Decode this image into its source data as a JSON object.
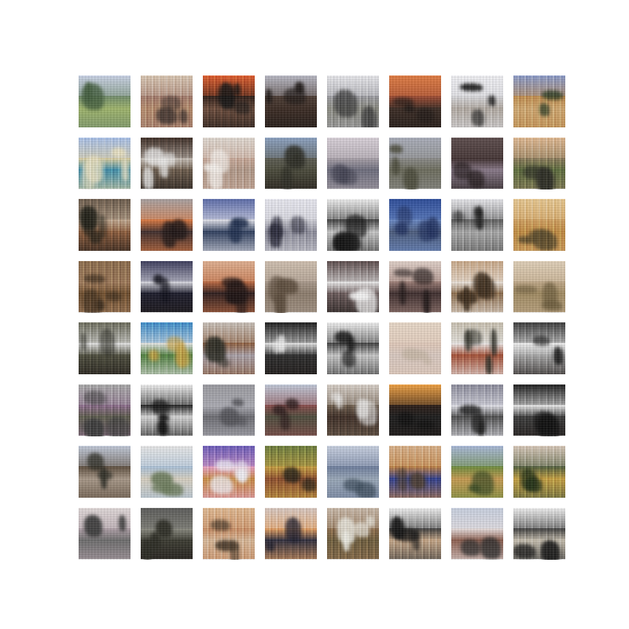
{
  "grid": {
    "rows": 8,
    "cols": 8,
    "tiles": [
      {
        "sky": "#c9d2e6",
        "mid": "#6f8a6a",
        "ground": "#9fb56a",
        "blob": "#3f5a3a",
        "dark": false,
        "streaks": false
      },
      {
        "sky": "#d9c6b2",
        "mid": "#a0786a",
        "ground": "#b58a6a",
        "blob": "#3a2e2a",
        "dark": false,
        "streaks": true
      },
      {
        "sky": "#e05a2a",
        "mid": "#2a1a14",
        "ground": "#6a4a3a",
        "blob": "#111111",
        "dark": true,
        "streaks": true
      },
      {
        "sky": "#b8b8c4",
        "mid": "#4a3a32",
        "ground": "#3a2a22",
        "blob": "#1a1412",
        "dark": true,
        "streaks": false
      },
      {
        "sky": "#e8e8ec",
        "mid": "#9a9aa0",
        "ground": "#8a8a80",
        "blob": "#3a3a3a",
        "dark": false,
        "streaks": true
      },
      {
        "sky": "#e07a40",
        "mid": "#a04a30",
        "ground": "#3a2a22",
        "blob": "#1a1412",
        "dark": true,
        "streaks": false
      },
      {
        "sky": "#f0f0f4",
        "mid": "#d8d8dc",
        "ground": "#b0a8a0",
        "blob": "#111111",
        "dark": false,
        "streaks": true
      },
      {
        "sky": "#8a9ac8",
        "mid": "#c08a4a",
        "ground": "#d0a870",
        "blob": "#2a3a22",
        "dark": false,
        "streaks": true
      },
      {
        "sky": "#a8c0e8",
        "mid": "#e0d0a0",
        "ground": "#3a8aa8",
        "blob": "#e8e0c0",
        "dark": false,
        "streaks": true
      },
      {
        "sky": "#3a2a22",
        "mid": "#c8c0b8",
        "ground": "#6a5a4a",
        "blob": "#f0f0f0",
        "dark": true,
        "streaks": true
      },
      {
        "sky": "#e0d8d0",
        "mid": "#c8a898",
        "ground": "#b09888",
        "blob": "#f8f4f0",
        "dark": false,
        "streaks": true
      },
      {
        "sky": "#8aa0c0",
        "mid": "#5a5a50",
        "ground": "#4a4a3a",
        "blob": "#2a2a22",
        "dark": true,
        "streaks": false
      },
      {
        "sky": "#d8d0d8",
        "mid": "#a8a0a8",
        "ground": "#6a6a7a",
        "blob": "#3a3a4a",
        "dark": false,
        "streaks": false
      },
      {
        "sky": "#a8acb8",
        "mid": "#8a8a88",
        "ground": "#6a6a5a",
        "blob": "#4a4a3a",
        "dark": false,
        "streaks": false
      },
      {
        "sky": "#5a4a4a",
        "mid": "#3a2a2a",
        "ground": "#8a7a8a",
        "blob": "#1a1212",
        "dark": true,
        "streaks": false
      },
      {
        "sky": "#e0b890",
        "mid": "#8a7a5a",
        "ground": "#5a6a3a",
        "blob": "#2a2a22",
        "dark": false,
        "streaks": true
      },
      {
        "sky": "#6a5a4a",
        "mid": "#c0a890",
        "ground": "#8a5a3a",
        "blob": "#1a1a12",
        "dark": true,
        "streaks": true
      },
      {
        "sky": "#a8a0a0",
        "mid": "#e07a40",
        "ground": "#3a2a2a",
        "blob": "#1a1212",
        "dark": false,
        "streaks": false
      },
      {
        "sky": "#5a6aa8",
        "mid": "#e8e8f0",
        "ground": "#2a3a5a",
        "blob": "#1a2a4a",
        "dark": false,
        "streaks": false
      },
      {
        "sky": "#e8e8f0",
        "mid": "#d0d0d8",
        "ground": "#8a8a98",
        "blob": "#2a2a3a",
        "dark": false,
        "streaks": true
      },
      {
        "sky": "#f0f0f0",
        "mid": "#3a3a3a",
        "ground": "#c8c8c8",
        "blob": "#111111",
        "dark": false,
        "streaks": true
      },
      {
        "sky": "#2a4a98",
        "mid": "#6a8ac8",
        "ground": "#4a5a7a",
        "blob": "#1a2a5a",
        "dark": false,
        "streaks": false
      },
      {
        "sky": "#e8e8ec",
        "mid": "#5a5a5a",
        "ground": "#a8a8a8",
        "blob": "#1a1a1a",
        "dark": false,
        "streaks": true
      },
      {
        "sky": "#e8c890",
        "mid": "#d0a060",
        "ground": "#c08a40",
        "blob": "#5a4a2a",
        "dark": false,
        "streaks": true
      },
      {
        "sky": "#8a6a4a",
        "mid": "#a07a5a",
        "ground": "#6a4a2a",
        "blob": "#3a2a1a",
        "dark": false,
        "streaks": true
      },
      {
        "sky": "#3a3a5a",
        "mid": "#e0e0e8",
        "ground": "#1a1a2a",
        "blob": "#0a0a14",
        "dark": true,
        "streaks": false
      },
      {
        "sky": "#e0b090",
        "mid": "#c06a40",
        "ground": "#2a1a1a",
        "blob": "#1a1010",
        "dark": false,
        "streaks": false
      },
      {
        "sky": "#d0c0b0",
        "mid": "#a8988a",
        "ground": "#8a7a6a",
        "blob": "#5a4a3a",
        "dark": false,
        "streaks": false
      },
      {
        "sky": "#5a4a4a",
        "mid": "#f0f0f0",
        "ground": "#6a5a5a",
        "blob": "#f8f8f8",
        "dark": true,
        "streaks": true
      },
      {
        "sky": "#e0d0c8",
        "mid": "#a08078",
        "ground": "#3a2a2a",
        "blob": "#1a1212",
        "dark": false,
        "streaks": false
      },
      {
        "sky": "#c8a888",
        "mid": "#f0e8e0",
        "ground": "#8a6a4a",
        "blob": "#3a2a1a",
        "dark": false,
        "streaks": true
      },
      {
        "sky": "#e0d0b8",
        "mid": "#c0a888",
        "ground": "#a08a60",
        "blob": "#6a5a3a",
        "dark": false,
        "streaks": false
      },
      {
        "sky": "#6a6a5a",
        "mid": "#e8e8e8",
        "ground": "#4a4a3a",
        "blob": "#2a2a22",
        "dark": true,
        "streaks": true
      },
      {
        "sky": "#3a8ac8",
        "mid": "#e8e8e8",
        "ground": "#4a7a3a",
        "blob": "#c8a040",
        "dark": false,
        "streaks": true
      },
      {
        "sky": "#c8c0b8",
        "mid": "#8a5a3a",
        "ground": "#a8a0a8",
        "blob": "#2a2a22",
        "dark": false,
        "streaks": true
      },
      {
        "sky": "#1a1a1a",
        "mid": "#e8e8e8",
        "ground": "#2a2a2a",
        "blob": "#f0f0f0",
        "dark": true,
        "streaks": true
      },
      {
        "sky": "#f0f0f0",
        "mid": "#3a3a3a",
        "ground": "#c8c8c8",
        "blob": "#111111",
        "dark": false,
        "streaks": true
      },
      {
        "sky": "#e8d8c8",
        "mid": "#e0c8b8",
        "ground": "#d8c8c0",
        "blob": "#c8b8a8",
        "dark": false,
        "streaks": false
      },
      {
        "sky": "#c8c0b0",
        "mid": "#f0f0f0",
        "ground": "#a04a30",
        "blob": "#2a2a22",
        "dark": false,
        "streaks": true
      },
      {
        "sky": "#3a3a3a",
        "mid": "#f0f0f0",
        "ground": "#a8a8a8",
        "blob": "#111111",
        "dark": true,
        "streaks": true
      },
      {
        "sky": "#a8a8a8",
        "mid": "#8a6a8a",
        "ground": "#5a5a4a",
        "blob": "#3a3a3a",
        "dark": false,
        "streaks": true
      },
      {
        "sky": "#f0f0f0",
        "mid": "#1a1a1a",
        "ground": "#d8d8d8",
        "blob": "#0a0a0a",
        "dark": false,
        "streaks": true
      },
      {
        "sky": "#9a9aa0",
        "mid": "#b0b0b8",
        "ground": "#6a6a70",
        "blob": "#4a4a50",
        "dark": false,
        "streaks": false
      },
      {
        "sky": "#c0c8d8",
        "mid": "#8a4a4a",
        "ground": "#4a4a3a",
        "blob": "#2a1a1a",
        "dark": false,
        "streaks": false
      },
      {
        "sky": "#d8d0c8",
        "mid": "#6a5a4a",
        "ground": "#3a2a22",
        "blob": "#f0f0f0",
        "dark": false,
        "streaks": true
      },
      {
        "sky": "#f0a040",
        "mid": "#2a1a14",
        "ground": "#1a1a1a",
        "blob": "#0a0a0a",
        "dark": true,
        "streaks": false
      },
      {
        "sky": "#8a8a9a",
        "mid": "#e8e8f0",
        "ground": "#4a4a4a",
        "blob": "#1a1a1a",
        "dark": false,
        "streaks": true
      },
      {
        "sky": "#1a1a1a",
        "mid": "#f0f0f0",
        "ground": "#3a3a3a",
        "blob": "#0a0a0a",
        "dark": true,
        "streaks": true
      },
      {
        "sky": "#c0c8d8",
        "mid": "#5a4a3a",
        "ground": "#a89888",
        "blob": "#2a2a22",
        "dark": false,
        "streaks": false
      },
      {
        "sky": "#e8e8e8",
        "mid": "#a8c0d8",
        "ground": "#d8d0c0",
        "blob": "#6a7a5a",
        "dark": false,
        "streaks": false
      },
      {
        "sky": "#6a5ab8",
        "mid": "#e8a0c8",
        "ground": "#c88a40",
        "blob": "#f0f0f8",
        "dark": false,
        "streaks": true
      },
      {
        "sky": "#6a7a3a",
        "mid": "#c8a040",
        "ground": "#8a4a2a",
        "blob": "#1a1a12",
        "dark": false,
        "streaks": true
      },
      {
        "sky": "#c8d0e0",
        "mid": "#6a7a9a",
        "ground": "#9aa8b8",
        "blob": "#3a4a5a",
        "dark": false,
        "streaks": false
      },
      {
        "sky": "#d8b088",
        "mid": "#c08040",
        "ground": "#2a3a8a",
        "blob": "#4a3a2a",
        "dark": false,
        "streaks": true
      },
      {
        "sky": "#a8b8d8",
        "mid": "#6a8a3a",
        "ground": "#c89a50",
        "blob": "#3a4a22",
        "dark": false,
        "streaks": false
      },
      {
        "sky": "#d8c8b8",
        "mid": "#4a5a3a",
        "ground": "#c8a040",
        "blob": "#1a2a12",
        "dark": false,
        "streaks": true
      },
      {
        "sky": "#e0d8d8",
        "mid": "#b0a0a8",
        "ground": "#6a6a6a",
        "blob": "#3a3a3a",
        "dark": false,
        "streaks": false
      },
      {
        "sky": "#5a5a58",
        "mid": "#8a8a80",
        "ground": "#3a3a30",
        "blob": "#2a2a22",
        "dark": true,
        "streaks": false
      },
      {
        "sky": "#e0b890",
        "mid": "#c88a60",
        "ground": "#d8b898",
        "blob": "#4a3a2a",
        "dark": false,
        "streaks": true
      },
      {
        "sky": "#d8c8c0",
        "mid": "#e8a060",
        "ground": "#2a2a3a",
        "blob": "#1a1a2a",
        "dark": false,
        "streaks": true
      },
      {
        "sky": "#c8b8a8",
        "mid": "#8a6a4a",
        "ground": "#6a5a3a",
        "blob": "#f0f0e8",
        "dark": false,
        "streaks": true
      },
      {
        "sky": "#f0f0f0",
        "mid": "#3a3a3a",
        "ground": "#c8a888",
        "blob": "#111111",
        "dark": false,
        "streaks": true
      },
      {
        "sky": "#c8d0e0",
        "mid": "#e8e0e0",
        "ground": "#8a5a4a",
        "blob": "#2a2a2a",
        "dark": false,
        "streaks": false
      },
      {
        "sky": "#f0f0f0",
        "mid": "#3a3a3a",
        "ground": "#c8c0b0",
        "blob": "#111111",
        "dark": false,
        "streaks": true
      }
    ]
  }
}
